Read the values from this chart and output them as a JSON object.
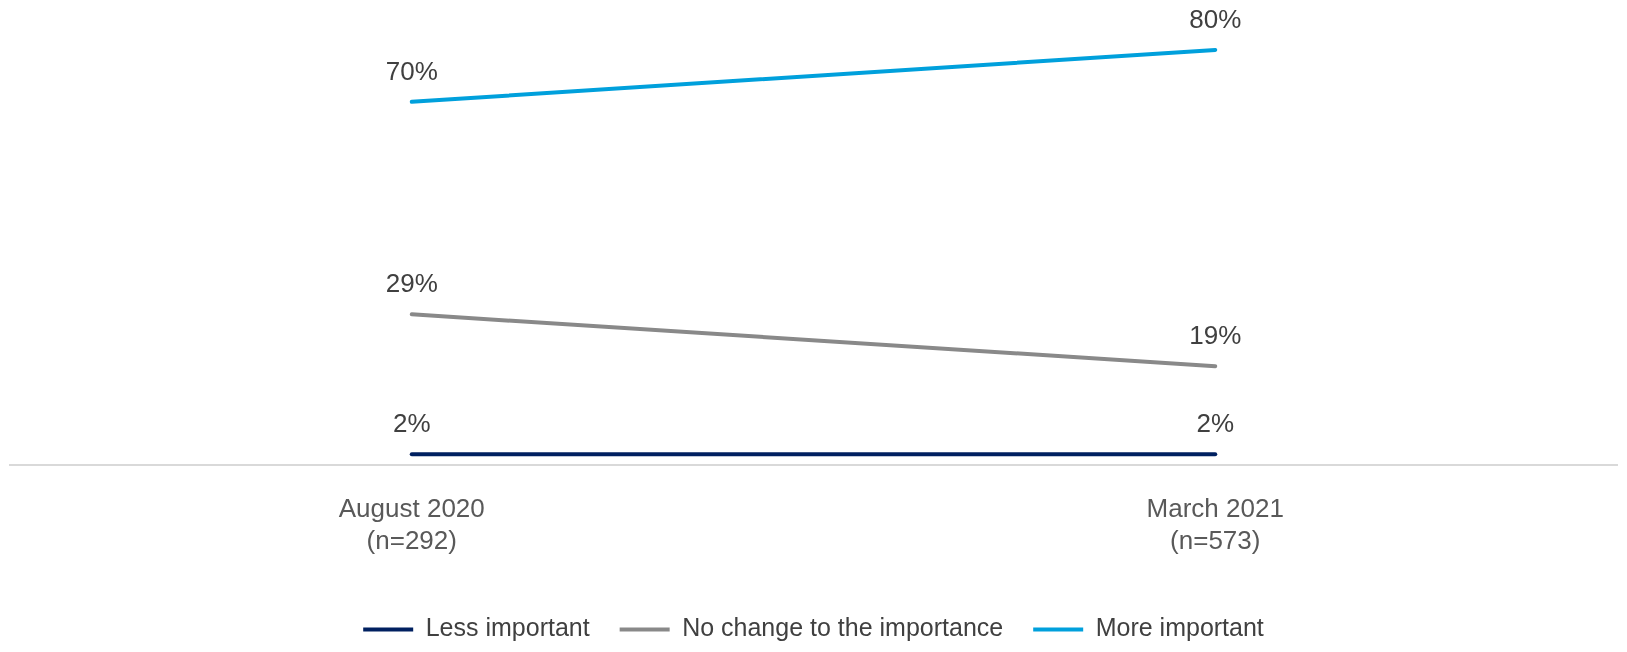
{
  "chart_data": {
    "type": "line",
    "categories": [
      "August 2020\n(n=292)",
      "March 2021\n(n=573)"
    ],
    "series": [
      {
        "name": "Less important",
        "color": "#002060",
        "values": [
          2,
          2
        ],
        "value_labels": [
          "2%",
          "2%"
        ]
      },
      {
        "name": "No change to the importance",
        "color": "#898989",
        "values": [
          29,
          19
        ],
        "value_labels": [
          "29%",
          "19%"
        ]
      },
      {
        "name": "More important",
        "color": "#00a0dc",
        "values": [
          70,
          80
        ],
        "value_labels": [
          "70%",
          "80%"
        ]
      }
    ],
    "legend": "bottom",
    "grid": false,
    "marker": "none",
    "line_style": "solid",
    "tick_labels": "x"
  }
}
